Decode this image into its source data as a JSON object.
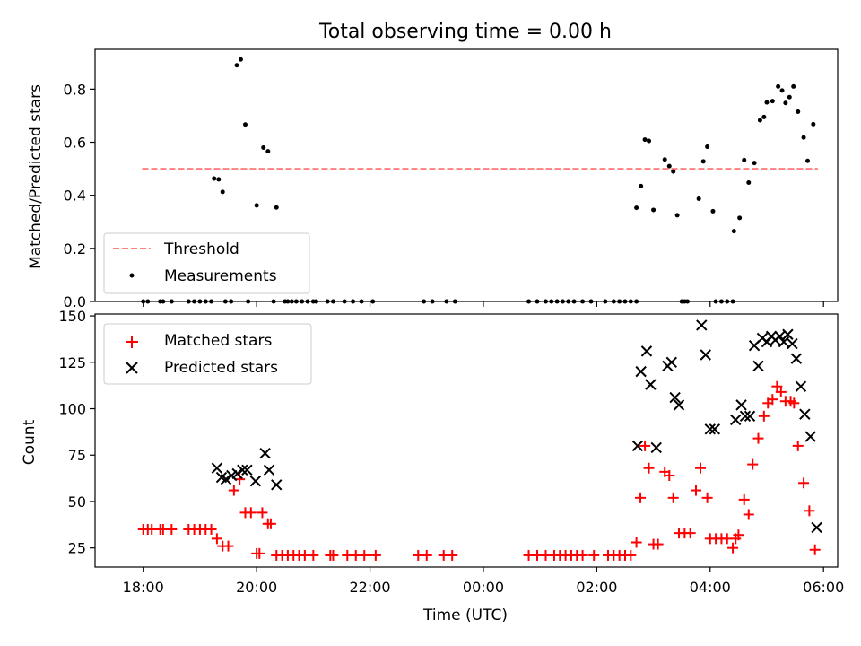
{
  "figure": {
    "title": "Total observing time = 0.00 h"
  },
  "chart_data": [
    {
      "type": "scatter",
      "panel": "top",
      "ylabel": "Matched/Predicted stars",
      "ylim": [
        0,
        0.95
      ],
      "yticks": [
        0.0,
        0.2,
        0.4,
        0.6,
        0.8
      ],
      "ytick_labels": [
        "0.0",
        "0.2",
        "0.4",
        "0.6",
        "0.8"
      ],
      "xlim": [
        17.15,
        30.25
      ],
      "xticks": [
        18,
        20,
        22,
        24,
        26,
        28,
        30
      ],
      "legend": "lower-left",
      "series": [
        {
          "name": "Threshold",
          "kind": "line",
          "color": "#ff7f7f",
          "dash": true,
          "x": [
            17.98,
            29.9
          ],
          "y": [
            0.5,
            0.5
          ]
        },
        {
          "name": "Measurements",
          "kind": "scatter",
          "color": "#000000",
          "marker": "dot",
          "points": [
            [
              18.0,
              0
            ],
            [
              18.08,
              0
            ],
            [
              18.3,
              0
            ],
            [
              18.35,
              0
            ],
            [
              18.5,
              0
            ],
            [
              18.8,
              0
            ],
            [
              18.9,
              0
            ],
            [
              19.0,
              0
            ],
            [
              19.1,
              0
            ],
            [
              19.2,
              0
            ],
            [
              19.25,
              0.463
            ],
            [
              19.33,
              0.46
            ],
            [
              19.4,
              0.413
            ],
            [
              19.45,
              0
            ],
            [
              19.55,
              0
            ],
            [
              19.65,
              0.89
            ],
            [
              19.72,
              0.912
            ],
            [
              19.8,
              0.667
            ],
            [
              19.85,
              0
            ],
            [
              20.0,
              0.362
            ],
            [
              20.12,
              0.58
            ],
            [
              20.2,
              0.566
            ],
            [
              20.3,
              0
            ],
            [
              20.35,
              0.354
            ],
            [
              20.5,
              0
            ],
            [
              20.55,
              0
            ],
            [
              20.62,
              0
            ],
            [
              20.7,
              0
            ],
            [
              20.8,
              0
            ],
            [
              20.9,
              0
            ],
            [
              21.0,
              0
            ],
            [
              21.05,
              0
            ],
            [
              21.25,
              0
            ],
            [
              21.35,
              0
            ],
            [
              21.55,
              0
            ],
            [
              21.7,
              0
            ],
            [
              21.85,
              0
            ],
            [
              22.05,
              0
            ],
            [
              22.95,
              0
            ],
            [
              23.1,
              0
            ],
            [
              23.35,
              0
            ],
            [
              23.5,
              0
            ],
            [
              24.8,
              0
            ],
            [
              24.95,
              0
            ],
            [
              25.1,
              0
            ],
            [
              25.2,
              0
            ],
            [
              25.3,
              0
            ],
            [
              25.4,
              0
            ],
            [
              25.5,
              0
            ],
            [
              25.6,
              0
            ],
            [
              25.75,
              0
            ],
            [
              25.9,
              0
            ],
            [
              26.15,
              0
            ],
            [
              26.3,
              0
            ],
            [
              26.4,
              0
            ],
            [
              26.5,
              0
            ],
            [
              26.6,
              0
            ],
            [
              26.7,
              0
            ],
            [
              26.7,
              0.353
            ],
            [
              26.78,
              0.435
            ],
            [
              26.85,
              0.61
            ],
            [
              26.92,
              0.605
            ],
            [
              27.0,
              0.345
            ],
            [
              27.2,
              0.535
            ],
            [
              27.28,
              0.51
            ],
            [
              27.35,
              0.49
            ],
            [
              27.42,
              0.325
            ],
            [
              27.5,
              0
            ],
            [
              27.55,
              0
            ],
            [
              27.6,
              0
            ],
            [
              27.8,
              0.387
            ],
            [
              27.88,
              0.528
            ],
            [
              27.95,
              0.583
            ],
            [
              28.05,
              0.34
            ],
            [
              28.1,
              0
            ],
            [
              28.2,
              0
            ],
            [
              28.3,
              0
            ],
            [
              28.4,
              0
            ],
            [
              28.42,
              0.265
            ],
            [
              28.52,
              0.315
            ],
            [
              28.6,
              0.533
            ],
            [
              28.68,
              0.448
            ],
            [
              28.78,
              0.522
            ],
            [
              28.88,
              0.683
            ],
            [
              28.95,
              0.695
            ],
            [
              29.0,
              0.75
            ],
            [
              29.1,
              0.755
            ],
            [
              29.2,
              0.81
            ],
            [
              29.27,
              0.795
            ],
            [
              29.33,
              0.748
            ],
            [
              29.4,
              0.77
            ],
            [
              29.47,
              0.81
            ],
            [
              29.55,
              0.715
            ],
            [
              29.65,
              0.618
            ],
            [
              29.72,
              0.53
            ],
            [
              29.82,
              0.668
            ]
          ]
        }
      ]
    },
    {
      "type": "scatter",
      "panel": "bottom",
      "xlabel": "Time (UTC)",
      "ylabel": "Count",
      "ylim": [
        14.7,
        151
      ],
      "yticks": [
        25,
        50,
        75,
        100,
        125,
        150
      ],
      "ytick_labels": [
        "25",
        "50",
        "75",
        "100",
        "125",
        "150"
      ],
      "xlim": [
        17.15,
        30.25
      ],
      "xticks": [
        18,
        20,
        22,
        24,
        26,
        28,
        30
      ],
      "xtick_labels": [
        "18:00",
        "20:00",
        "22:00",
        "00:00",
        "02:00",
        "04:00",
        "06:00"
      ],
      "legend": "top-left",
      "series": [
        {
          "name": "Matched stars",
          "kind": "scatter",
          "color": "#ff0000",
          "marker": "plus",
          "points": [
            [
              18.0,
              35
            ],
            [
              18.08,
              35
            ],
            [
              18.15,
              35
            ],
            [
              18.3,
              35
            ],
            [
              18.35,
              35
            ],
            [
              18.5,
              35
            ],
            [
              18.8,
              35
            ],
            [
              18.9,
              35
            ],
            [
              19.0,
              35
            ],
            [
              19.1,
              35
            ],
            [
              19.2,
              35
            ],
            [
              19.3,
              30
            ],
            [
              19.4,
              26
            ],
            [
              19.5,
              26
            ],
            [
              19.6,
              56
            ],
            [
              19.7,
              62
            ],
            [
              19.8,
              44
            ],
            [
              19.9,
              44
            ],
            [
              20.0,
              22
            ],
            [
              20.05,
              22
            ],
            [
              20.1,
              44
            ],
            [
              20.2,
              38
            ],
            [
              20.25,
              38
            ],
            [
              20.35,
              21
            ],
            [
              20.45,
              21
            ],
            [
              20.55,
              21
            ],
            [
              20.65,
              21
            ],
            [
              20.75,
              21
            ],
            [
              20.85,
              21
            ],
            [
              21.0,
              21
            ],
            [
              21.3,
              21
            ],
            [
              21.35,
              21
            ],
            [
              21.6,
              21
            ],
            [
              21.75,
              21
            ],
            [
              21.9,
              21
            ],
            [
              22.1,
              21
            ],
            [
              22.85,
              21
            ],
            [
              23.0,
              21
            ],
            [
              23.3,
              21
            ],
            [
              23.45,
              21
            ],
            [
              24.8,
              21
            ],
            [
              24.95,
              21
            ],
            [
              25.1,
              21
            ],
            [
              25.25,
              21
            ],
            [
              25.35,
              21
            ],
            [
              25.45,
              21
            ],
            [
              25.55,
              21
            ],
            [
              25.65,
              21
            ],
            [
              25.75,
              21
            ],
            [
              25.95,
              21
            ],
            [
              26.2,
              21
            ],
            [
              26.3,
              21
            ],
            [
              26.4,
              21
            ],
            [
              26.5,
              21
            ],
            [
              26.6,
              21
            ],
            [
              26.7,
              28
            ],
            [
              26.77,
              52
            ],
            [
              26.85,
              80
            ],
            [
              26.92,
              68
            ],
            [
              27.0,
              27
            ],
            [
              27.08,
              27
            ],
            [
              27.2,
              66
            ],
            [
              27.28,
              64
            ],
            [
              27.35,
              52
            ],
            [
              27.45,
              33
            ],
            [
              27.55,
              33
            ],
            [
              27.65,
              33
            ],
            [
              27.75,
              56
            ],
            [
              27.83,
              68
            ],
            [
              27.95,
              52
            ],
            [
              28.0,
              30
            ],
            [
              28.1,
              30
            ],
            [
              28.2,
              30
            ],
            [
              28.3,
              30
            ],
            [
              28.4,
              25
            ],
            [
              28.45,
              30
            ],
            [
              28.5,
              32
            ],
            [
              28.6,
              51
            ],
            [
              28.68,
              43
            ],
            [
              28.75,
              70
            ],
            [
              28.85,
              84
            ],
            [
              28.95,
              96
            ],
            [
              29.02,
              103
            ],
            [
              29.1,
              105
            ],
            [
              29.18,
              112
            ],
            [
              29.25,
              109
            ],
            [
              29.33,
              104
            ],
            [
              29.42,
              104
            ],
            [
              29.48,
              103
            ],
            [
              29.55,
              80
            ],
            [
              29.65,
              60
            ],
            [
              29.75,
              45
            ],
            [
              29.85,
              24
            ]
          ]
        },
        {
          "name": "Predicted stars",
          "kind": "scatter",
          "color": "#000000",
          "marker": "cross",
          "points": [
            [
              19.3,
              68
            ],
            [
              19.38,
              63
            ],
            [
              19.46,
              62
            ],
            [
              19.56,
              64
            ],
            [
              19.66,
              65
            ],
            [
              19.75,
              67
            ],
            [
              19.83,
              67
            ],
            [
              19.98,
              61
            ],
            [
              20.15,
              76
            ],
            [
              20.22,
              67
            ],
            [
              20.35,
              59
            ],
            [
              26.72,
              80
            ],
            [
              26.78,
              120
            ],
            [
              26.88,
              131
            ],
            [
              26.95,
              113
            ],
            [
              27.05,
              79
            ],
            [
              27.25,
              123
            ],
            [
              27.32,
              125
            ],
            [
              27.38,
              106
            ],
            [
              27.45,
              102
            ],
            [
              27.85,
              145
            ],
            [
              27.92,
              129
            ],
            [
              28.0,
              89
            ],
            [
              28.08,
              89
            ],
            [
              28.45,
              94
            ],
            [
              28.55,
              102
            ],
            [
              28.62,
              96
            ],
            [
              28.7,
              96
            ],
            [
              28.78,
              134
            ],
            [
              28.85,
              123
            ],
            [
              28.92,
              138
            ],
            [
              29.0,
              136
            ],
            [
              29.08,
              139
            ],
            [
              29.15,
              137
            ],
            [
              29.23,
              139
            ],
            [
              29.3,
              136
            ],
            [
              29.37,
              140
            ],
            [
              29.45,
              135
            ],
            [
              29.52,
              127
            ],
            [
              29.6,
              112
            ],
            [
              29.67,
              97
            ],
            [
              29.77,
              85
            ],
            [
              29.88,
              36
            ]
          ]
        }
      ]
    }
  ]
}
